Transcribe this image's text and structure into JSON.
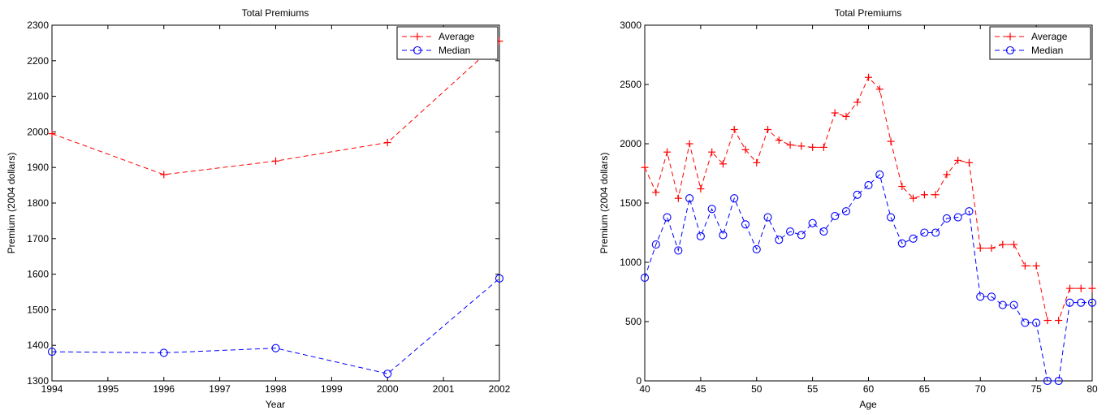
{
  "chart_data": [
    {
      "type": "line",
      "title": "Total Premiums",
      "xlabel": "Year",
      "ylabel": "Premium (2004 dollars)",
      "xlim": [
        1994,
        2002
      ],
      "ylim": [
        1300,
        2300
      ],
      "xticks": [
        "1994",
        "1995",
        "1996",
        "1997",
        "1998",
        "1999",
        "2000",
        "2001",
        "2002"
      ],
      "yticks": [
        "1300",
        "1400",
        "1500",
        "1600",
        "1700",
        "1800",
        "1900",
        "2000",
        "2100",
        "2200",
        "2300"
      ],
      "legend": "top-right",
      "grid": false,
      "x": [
        1994,
        1996,
        1998,
        2000,
        2002
      ],
      "series": [
        {
          "name": "Average",
          "color": "#ff0000",
          "marker": "plus",
          "values": [
            1995,
            1880,
            1918,
            1970,
            2255
          ]
        },
        {
          "name": "Median",
          "color": "#0000ff",
          "marker": "circle",
          "values": [
            1382,
            1379,
            1392,
            1320,
            1588
          ]
        }
      ]
    },
    {
      "type": "line",
      "title": "Total Premiums",
      "xlabel": "Age",
      "ylabel": "Premium (2004 dollars)",
      "xlim": [
        40,
        80
      ],
      "ylim": [
        0,
        3000
      ],
      "xticks": [
        "40",
        "45",
        "50",
        "55",
        "60",
        "65",
        "70",
        "75",
        "80"
      ],
      "yticks": [
        "0",
        "500",
        "1000",
        "1500",
        "2000",
        "2500",
        "3000"
      ],
      "legend": "top-right",
      "grid": false,
      "x": [
        40,
        41,
        42,
        43,
        44,
        45,
        46,
        47,
        48,
        49,
        50,
        51,
        52,
        53,
        54,
        55,
        56,
        57,
        58,
        59,
        60,
        61,
        62,
        63,
        64,
        65,
        66,
        67,
        68,
        69,
        70,
        71,
        72,
        73,
        74,
        75,
        76,
        77,
        78,
        79,
        80
      ],
      "series": [
        {
          "name": "Average",
          "color": "#ff0000",
          "marker": "plus",
          "values": [
            1800,
            1590,
            1930,
            1540,
            2000,
            1620,
            1930,
            1830,
            2120,
            1950,
            1840,
            2120,
            2030,
            1990,
            1980,
            1970,
            1970,
            2260,
            2230,
            2350,
            2560,
            2460,
            2020,
            1640,
            1540,
            1570,
            1570,
            1740,
            1860,
            1840,
            1120,
            1120,
            1150,
            1150,
            970,
            970,
            510,
            510,
            780,
            780,
            780
          ]
        },
        {
          "name": "Median",
          "color": "#0000ff",
          "marker": "circle",
          "values": [
            870,
            1150,
            1380,
            1100,
            1540,
            1220,
            1450,
            1230,
            1540,
            1320,
            1110,
            1380,
            1190,
            1260,
            1230,
            1330,
            1260,
            1390,
            1430,
            1570,
            1650,
            1740,
            1380,
            1160,
            1200,
            1250,
            1250,
            1370,
            1380,
            1430,
            710,
            710,
            640,
            640,
            490,
            490,
            0,
            0,
            660,
            660,
            660
          ]
        }
      ]
    }
  ]
}
